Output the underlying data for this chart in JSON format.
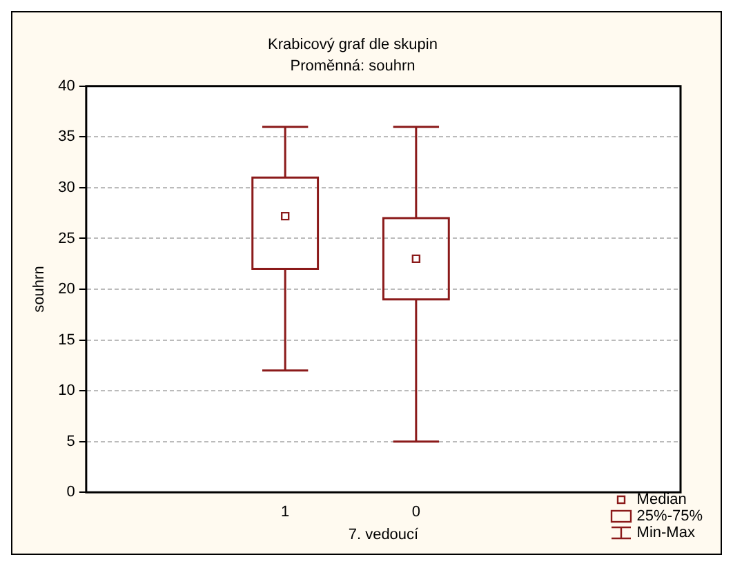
{
  "chart_data": {
    "type": "box",
    "title": "Krabicový graf dle skupin",
    "subtitle": "Proměnná: souhrn",
    "xlabel": "7. vedoucí",
    "ylabel": "souhrn",
    "categories": [
      "1",
      "0"
    ],
    "boxes": [
      {
        "low": 12,
        "q1": 22,
        "median": 27.2,
        "q3": 31,
        "high": 36
      },
      {
        "low": 5,
        "q1": 19,
        "median": 23,
        "q3": 27,
        "high": 36
      }
    ],
    "color": "#8b1a1a",
    "ylim": [
      0,
      40
    ],
    "yticks": [
      0,
      5,
      10,
      15,
      20,
      25,
      30,
      35,
      40
    ],
    "grid": "y",
    "annotations": [
      "Median",
      "25%-75%",
      "Min-Max"
    ]
  }
}
